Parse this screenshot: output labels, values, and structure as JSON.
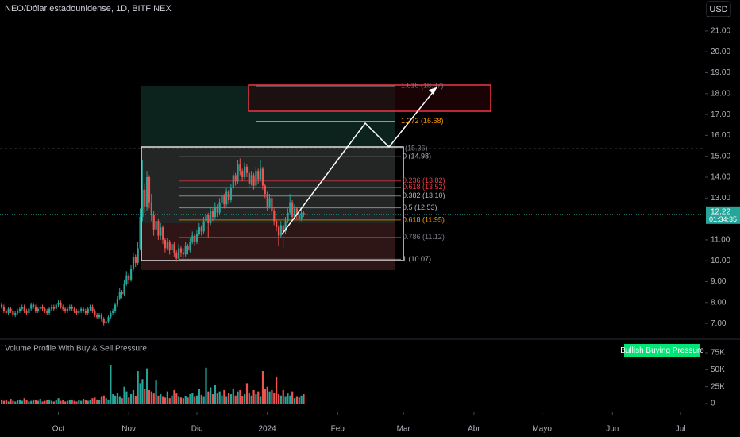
{
  "chart_data": {
    "type": "candlestick",
    "title": "NEO/Dólar estadounidense, 1D, BITFINEX",
    "currency": "USD",
    "up_color": "#26a69a",
    "down_color": "#ef5350",
    "candles": [
      [
        7.9,
        8.0,
        7.7,
        7.8
      ],
      [
        7.8,
        7.9,
        7.5,
        7.6
      ],
      [
        7.6,
        7.7,
        7.4,
        7.5
      ],
      [
        7.5,
        7.8,
        7.4,
        7.7
      ],
      [
        7.7,
        7.8,
        7.5,
        7.6
      ],
      [
        7.6,
        7.7,
        7.3,
        7.4
      ],
      [
        7.4,
        7.6,
        7.3,
        7.5
      ],
      [
        7.5,
        7.7,
        7.4,
        7.6
      ],
      [
        7.6,
        7.8,
        7.5,
        7.7
      ],
      [
        7.7,
        7.9,
        7.6,
        7.8
      ],
      [
        7.8,
        7.9,
        7.5,
        7.6
      ],
      [
        7.6,
        7.7,
        7.4,
        7.5
      ],
      [
        7.5,
        7.8,
        7.4,
        7.7
      ],
      [
        7.7,
        8.0,
        7.6,
        7.9
      ],
      [
        7.9,
        8.0,
        7.7,
        7.8
      ],
      [
        7.8,
        7.9,
        7.5,
        7.6
      ],
      [
        7.6,
        7.8,
        7.5,
        7.7
      ],
      [
        7.7,
        7.9,
        7.6,
        7.8
      ],
      [
        7.8,
        7.9,
        7.6,
        7.7
      ],
      [
        7.7,
        7.8,
        7.5,
        7.6
      ],
      [
        7.6,
        7.7,
        7.4,
        7.5
      ],
      [
        7.5,
        7.8,
        7.4,
        7.7
      ],
      [
        7.7,
        7.9,
        7.6,
        7.8
      ],
      [
        7.8,
        7.9,
        7.6,
        7.7
      ],
      [
        7.7,
        8.0,
        7.6,
        7.9
      ],
      [
        7.9,
        8.1,
        7.8,
        8.0
      ],
      [
        8.0,
        8.1,
        7.7,
        7.8
      ],
      [
        7.8,
        7.9,
        7.6,
        7.7
      ],
      [
        7.7,
        7.8,
        7.5,
        7.6
      ],
      [
        7.6,
        7.8,
        7.5,
        7.7
      ],
      [
        7.7,
        7.9,
        7.6,
        7.8
      ],
      [
        7.8,
        7.9,
        7.6,
        7.7
      ],
      [
        7.7,
        7.8,
        7.5,
        7.6
      ],
      [
        7.6,
        7.7,
        7.4,
        7.5
      ],
      [
        7.5,
        7.7,
        7.4,
        7.6
      ],
      [
        7.6,
        7.8,
        7.5,
        7.7
      ],
      [
        7.7,
        7.8,
        7.5,
        7.6
      ],
      [
        7.6,
        7.7,
        7.4,
        7.5
      ],
      [
        7.5,
        7.8,
        7.4,
        7.7
      ],
      [
        7.7,
        7.9,
        7.6,
        7.8
      ],
      [
        7.8,
        7.9,
        7.5,
        7.6
      ],
      [
        7.6,
        7.7,
        7.3,
        7.4
      ],
      [
        7.4,
        7.5,
        7.2,
        7.3
      ],
      [
        7.3,
        7.5,
        7.2,
        7.4
      ],
      [
        7.4,
        7.5,
        7.1,
        7.2
      ],
      [
        7.2,
        7.3,
        6.9,
        7.0
      ],
      [
        7.0,
        7.2,
        6.9,
        7.1
      ],
      [
        7.1,
        7.4,
        7.0,
        7.3
      ],
      [
        7.3,
        7.6,
        7.2,
        7.5
      ],
      [
        7.5,
        7.7,
        7.4,
        7.6
      ],
      [
        7.6,
        8.0,
        7.5,
        7.9
      ],
      [
        7.9,
        8.3,
        7.8,
        8.2
      ],
      [
        8.2,
        8.7,
        8.1,
        8.5
      ],
      [
        8.5,
        8.6,
        8.2,
        8.4
      ],
      [
        8.4,
        9.1,
        8.3,
        8.9
      ],
      [
        8.9,
        9.5,
        8.8,
        9.3
      ],
      [
        9.3,
        9.4,
        8.9,
        9.1
      ],
      [
        9.1,
        9.8,
        9.0,
        9.6
      ],
      [
        9.6,
        10.4,
        9.5,
        10.2
      ],
      [
        10.2,
        10.3,
        9.7,
        9.9
      ],
      [
        9.9,
        10.9,
        9.8,
        10.6
      ],
      [
        10.6,
        12.5,
        10.5,
        12.1
      ],
      [
        12.1,
        14.8,
        11.9,
        13.4
      ],
      [
        13.4,
        13.7,
        12.3,
        12.6
      ],
      [
        12.6,
        14.3,
        12.4,
        14.0
      ],
      [
        14.0,
        14.1,
        12.5,
        12.8
      ],
      [
        12.8,
        13.2,
        11.9,
        12.2
      ],
      [
        12.2,
        12.4,
        11.2,
        11.5
      ],
      [
        11.5,
        12.1,
        11.3,
        11.9
      ],
      [
        11.9,
        12.0,
        11.0,
        11.2
      ],
      [
        11.2,
        11.8,
        11.0,
        11.6
      ],
      [
        11.6,
        11.7,
        10.8,
        11.0
      ],
      [
        11.0,
        11.1,
        10.4,
        10.6
      ],
      [
        10.6,
        11.1,
        10.5,
        10.9
      ],
      [
        10.9,
        11.0,
        10.3,
        10.5
      ],
      [
        10.5,
        11.0,
        10.4,
        10.8
      ],
      [
        10.8,
        10.9,
        10.2,
        10.4
      ],
      [
        10.4,
        10.5,
        9.95,
        10.1
      ],
      [
        10.1,
        10.8,
        10.0,
        10.6
      ],
      [
        10.6,
        10.7,
        10.2,
        10.4
      ],
      [
        10.4,
        10.6,
        10.1,
        10.3
      ],
      [
        10.3,
        10.9,
        10.2,
        10.7
      ],
      [
        10.7,
        10.8,
        10.3,
        10.5
      ],
      [
        10.5,
        11.1,
        10.4,
        10.9
      ],
      [
        10.9,
        11.4,
        10.8,
        11.2
      ],
      [
        11.2,
        11.3,
        10.7,
        10.9
      ],
      [
        10.9,
        11.5,
        10.8,
        11.3
      ],
      [
        11.3,
        11.8,
        11.2,
        11.6
      ],
      [
        11.6,
        11.7,
        11.2,
        11.4
      ],
      [
        11.4,
        12.1,
        11.3,
        11.9
      ],
      [
        11.9,
        12.4,
        11.8,
        12.2
      ],
      [
        12.2,
        12.3,
        11.1,
        11.8
      ],
      [
        11.8,
        12.6,
        11.7,
        12.4
      ],
      [
        12.4,
        12.5,
        11.9,
        12.1
      ],
      [
        12.1,
        12.8,
        12.0,
        12.6
      ],
      [
        12.6,
        12.7,
        12.1,
        12.3
      ],
      [
        12.3,
        13.0,
        12.2,
        12.8
      ],
      [
        12.8,
        13.3,
        12.7,
        13.1
      ],
      [
        13.1,
        13.2,
        12.5,
        12.7
      ],
      [
        12.7,
        13.5,
        12.6,
        13.3
      ],
      [
        13.3,
        13.4,
        12.7,
        12.9
      ],
      [
        12.9,
        13.7,
        12.8,
        13.5
      ],
      [
        13.5,
        14.3,
        13.4,
        14.1
      ],
      [
        14.1,
        14.2,
        13.6,
        13.8
      ],
      [
        13.8,
        14.8,
        13.7,
        14.6
      ],
      [
        14.6,
        14.9,
        14.1,
        14.3
      ],
      [
        14.3,
        14.4,
        13.8,
        14.0
      ],
      [
        14.0,
        14.7,
        13.9,
        14.5
      ],
      [
        14.5,
        14.6,
        14.0,
        14.2
      ],
      [
        14.2,
        14.3,
        13.5,
        13.7
      ],
      [
        13.7,
        14.3,
        13.6,
        14.1
      ],
      [
        14.1,
        14.2,
        13.4,
        13.6
      ],
      [
        13.6,
        14.5,
        13.5,
        14.3
      ],
      [
        14.3,
        14.4,
        13.7,
        13.9
      ],
      [
        13.9,
        14.8,
        13.8,
        14.4
      ],
      [
        14.4,
        14.5,
        13.4,
        13.6
      ],
      [
        13.6,
        13.7,
        13.0,
        13.2
      ],
      [
        13.2,
        13.3,
        12.4,
        12.6
      ],
      [
        12.6,
        13.2,
        12.5,
        13.0
      ],
      [
        13.0,
        13.1,
        12.2,
        12.4
      ],
      [
        12.4,
        12.5,
        11.7,
        11.9
      ],
      [
        11.9,
        12.0,
        11.4,
        11.6
      ],
      [
        11.6,
        11.7,
        10.7,
        11.2
      ],
      [
        11.2,
        11.9,
        11.1,
        11.7
      ],
      [
        11.7,
        11.8,
        10.6,
        11.4
      ],
      [
        11.4,
        12.1,
        11.3,
        11.9
      ],
      [
        11.9,
        12.5,
        11.8,
        12.3
      ],
      [
        12.3,
        13.2,
        12.2,
        12.8
      ],
      [
        12.8,
        12.9,
        11.9,
        12.1
      ],
      [
        12.1,
        12.7,
        12.0,
        12.5
      ],
      [
        12.5,
        12.6,
        12.0,
        12.2
      ],
      [
        12.2,
        12.3,
        11.8,
        12.0
      ],
      [
        12.0,
        12.5,
        11.9,
        12.3
      ],
      [
        12.3,
        12.4,
        12.1,
        12.22
      ]
    ],
    "volumes": [
      6000,
      4000,
      5000,
      3000,
      7000,
      4000,
      3000,
      5000,
      6000,
      4000,
      8000,
      5000,
      3000,
      4000,
      6000,
      5000,
      4000,
      7000,
      3000,
      4000,
      5000,
      6000,
      4000,
      3000,
      5000,
      8000,
      4000,
      5000,
      3000,
      4000,
      5000,
      6000,
      4000,
      3000,
      5000,
      4000,
      7000,
      5000,
      4000,
      6000,
      8000,
      9000,
      6000,
      5000,
      10000,
      12000,
      8000,
      6000,
      57000,
      14000,
      12000,
      16000,
      10000,
      8000,
      25000,
      18000,
      9000,
      14000,
      20000,
      11000,
      48000,
      30000,
      36000,
      22000,
      52000,
      20000,
      18000,
      15000,
      35000,
      12000,
      14000,
      10000,
      9000,
      18000,
      8000,
      12000,
      20000,
      15000,
      10000,
      9000,
      8000,
      11000,
      9000,
      14000,
      16000,
      10000,
      12000,
      22000,
      13000,
      10000,
      53000,
      18000,
      24000,
      14000,
      28000,
      15000,
      18000,
      12000,
      20000,
      10000,
      16000,
      14000,
      22000,
      12000,
      18000,
      20000,
      11000,
      14000,
      30000,
      16000,
      12000,
      20000,
      14000,
      18000,
      10000,
      48000,
      22000,
      25000,
      18000,
      20000,
      16000,
      40000,
      14000,
      12000,
      20000,
      10000,
      15000,
      12000,
      18000,
      8000,
      10000,
      9000,
      12000,
      14000
    ],
    "xlim": [
      -0.7,
      309.8
    ],
    "xticks": [
      {
        "value": 25,
        "label": "Oct"
      },
      {
        "value": 56,
        "label": "Nov"
      },
      {
        "value": 86,
        "label": "Dic"
      },
      {
        "value": 117,
        "label": "2024"
      },
      {
        "value": 148,
        "label": "Feb"
      },
      {
        "value": 177,
        "label": "Mar"
      },
      {
        "value": 208,
        "label": "Abr"
      },
      {
        "value": 238,
        "label": "Mayo"
      },
      {
        "value": 269,
        "label": "Jun"
      },
      {
        "value": 299,
        "label": "Jul"
      }
    ],
    "ylim": [
      6.32,
      22.48
    ],
    "yticks": [
      {
        "value": 7,
        "label": "7.00"
      },
      {
        "value": 8,
        "label": "8.00"
      },
      {
        "value": 9,
        "label": "9.00"
      },
      {
        "value": 10,
        "label": "10.00"
      },
      {
        "value": 11,
        "label": "11.00"
      },
      {
        "value": 12,
        "label": "12.00"
      },
      {
        "value": 13,
        "label": "13.00"
      },
      {
        "value": 14,
        "label": "14.00"
      },
      {
        "value": 15,
        "label": "15.00"
      },
      {
        "value": 16,
        "label": "16.00"
      },
      {
        "value": 17,
        "label": "17.00"
      },
      {
        "value": 18,
        "label": "18.00"
      },
      {
        "value": 19,
        "label": "19.00"
      },
      {
        "value": 20,
        "label": "20.00"
      },
      {
        "value": 21,
        "label": "21.00"
      }
    ],
    "volume_ylim": [
      0,
      91400
    ],
    "volume_yticks": [
      0,
      {
        "value": 25000,
        "label": "25K"
      },
      {
        "value": 50000,
        "label": "50K"
      },
      {
        "value": 75000,
        "label": "75K"
      }
    ],
    "last_price": 12.22,
    "countdown": "01:34:35",
    "fib_levels": [
      {
        "value": 14.98,
        "label": "0 (14.98)",
        "color": "#b2b5be"
      },
      {
        "value": 13.82,
        "label": "0.236 (13.82)",
        "color": "#f23645"
      },
      {
        "value": 13.52,
        "label": "0.618 (13.52)",
        "color": "#f23645"
      },
      {
        "value": 13.1,
        "label": "0.382 (13.10)",
        "color": "#b2b5be"
      },
      {
        "value": 12.53,
        "label": "0.5 (12.53)",
        "color": "#b2b5be"
      },
      {
        "value": 11.95,
        "label": "0.618 (11.95)",
        "color": "#ff9800"
      },
      {
        "value": 11.12,
        "label": "0.786 (11.12)",
        "color": "#787b86"
      },
      {
        "value": 10.07,
        "label": "1 (10.07)",
        "color": "#b2b5be"
      }
    ],
    "extensions": [
      {
        "value": 16.68,
        "label": "1.272 (16.68)",
        "color": "#ff9800"
      },
      {
        "value": 18.37,
        "label": "1.618 (18.37)",
        "color": "#787b86"
      }
    ],
    "resistance": {
      "value": 15.36,
      "label": "(15.36)"
    },
    "indicator": {
      "name": "Volume Profile With Buy & Sell Pressure",
      "signal": "Bullish Buying Pressure"
    }
  }
}
